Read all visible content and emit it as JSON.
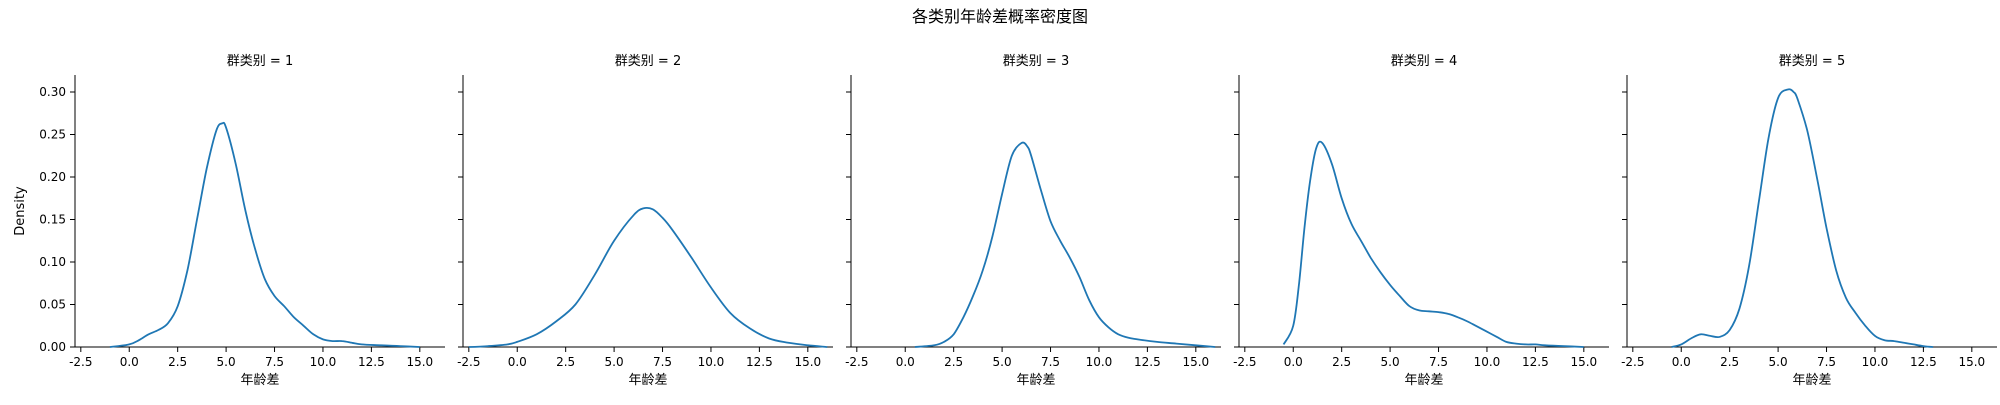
{
  "figure": {
    "title": "各类别年龄差概率密度图"
  },
  "chart_data": {
    "type": "line",
    "subtype": "kde-facet",
    "title": "各类别年龄差概率密度图",
    "xlabel": "年龄差",
    "ylabel": "Density",
    "xlim": [
      -2.8,
      16.3
    ],
    "ylim": [
      0,
      0.32
    ],
    "xticks": [
      -2.5,
      0.0,
      2.5,
      5.0,
      7.5,
      10.0,
      12.5,
      15.0
    ],
    "xtick_labels": [
      "-2.5",
      "0.0",
      "2.5",
      "5.0",
      "7.5",
      "10.0",
      "12.5",
      "15.0"
    ],
    "yticks": [
      0.0,
      0.05,
      0.1,
      0.15,
      0.2,
      0.25,
      0.3
    ],
    "ytick_labels": [
      "0.00",
      "0.05",
      "0.10",
      "0.15",
      "0.20",
      "0.25",
      "0.30"
    ],
    "shared_y": true,
    "line_color": "#1f77b4",
    "panels": [
      {
        "title": "群类别 = 1",
        "x": [
          -1.0,
          0.0,
          0.5,
          1.0,
          1.5,
          2.0,
          2.5,
          3.0,
          3.5,
          4.0,
          4.5,
          4.8,
          5.0,
          5.5,
          6.0,
          6.5,
          7.0,
          7.5,
          8.0,
          8.5,
          9.0,
          9.5,
          10.0,
          10.5,
          11.0,
          11.5,
          12.0,
          13.0,
          14.0,
          15.0
        ],
        "y": [
          0.0,
          0.003,
          0.008,
          0.015,
          0.02,
          0.028,
          0.048,
          0.09,
          0.15,
          0.21,
          0.255,
          0.263,
          0.258,
          0.215,
          0.16,
          0.115,
          0.08,
          0.06,
          0.048,
          0.035,
          0.025,
          0.015,
          0.009,
          0.007,
          0.007,
          0.005,
          0.003,
          0.002,
          0.001,
          0.0
        ]
      },
      {
        "title": "群类别 = 2",
        "x": [
          -2.5,
          -1.5,
          -0.5,
          0.0,
          1.0,
          2.0,
          3.0,
          4.0,
          5.0,
          6.0,
          6.5,
          7.0,
          7.5,
          8.0,
          9.0,
          10.0,
          11.0,
          12.0,
          13.0,
          14.0,
          15.0,
          16.0
        ],
        "y": [
          0.0,
          0.001,
          0.003,
          0.006,
          0.015,
          0.03,
          0.05,
          0.085,
          0.125,
          0.155,
          0.163,
          0.162,
          0.152,
          0.138,
          0.105,
          0.07,
          0.04,
          0.022,
          0.01,
          0.005,
          0.002,
          0.0
        ]
      },
      {
        "title": "群类别 = 3",
        "x": [
          0.5,
          1.5,
          2.0,
          2.5,
          3.0,
          3.5,
          4.0,
          4.5,
          5.0,
          5.5,
          6.0,
          6.3,
          6.5,
          7.0,
          7.5,
          8.0,
          8.5,
          9.0,
          9.5,
          10.0,
          10.5,
          11.0,
          11.5,
          12.0,
          13.0,
          14.0,
          15.0,
          16.0
        ],
        "y": [
          0.0,
          0.002,
          0.006,
          0.015,
          0.035,
          0.06,
          0.09,
          0.13,
          0.18,
          0.225,
          0.24,
          0.236,
          0.225,
          0.185,
          0.148,
          0.125,
          0.105,
          0.082,
          0.055,
          0.035,
          0.023,
          0.015,
          0.011,
          0.009,
          0.006,
          0.004,
          0.002,
          0.0
        ]
      },
      {
        "title": "群类别 = 4",
        "x": [
          -0.5,
          0.0,
          0.3,
          0.6,
          0.9,
          1.2,
          1.5,
          2.0,
          2.5,
          3.0,
          3.5,
          4.0,
          4.5,
          5.0,
          5.5,
          6.0,
          6.5,
          7.0,
          7.5,
          8.0,
          8.5,
          9.0,
          9.5,
          10.0,
          10.5,
          11.0,
          11.5,
          12.0,
          12.5,
          13.0,
          14.0,
          15.0
        ],
        "y": [
          0.003,
          0.025,
          0.075,
          0.145,
          0.2,
          0.235,
          0.24,
          0.215,
          0.175,
          0.145,
          0.125,
          0.105,
          0.088,
          0.073,
          0.06,
          0.048,
          0.043,
          0.042,
          0.041,
          0.039,
          0.035,
          0.03,
          0.024,
          0.018,
          0.012,
          0.006,
          0.004,
          0.003,
          0.003,
          0.002,
          0.001,
          0.0
        ]
      },
      {
        "title": "群类别 = 5",
        "x": [
          -0.5,
          0.0,
          0.5,
          1.0,
          1.5,
          2.0,
          2.5,
          3.0,
          3.5,
          4.0,
          4.5,
          5.0,
          5.5,
          5.8,
          6.0,
          6.5,
          7.0,
          7.5,
          8.0,
          8.5,
          9.0,
          9.5,
          10.0,
          10.5,
          11.0,
          11.5,
          12.0,
          12.5,
          13.0
        ],
        "y": [
          0.0,
          0.003,
          0.01,
          0.015,
          0.013,
          0.012,
          0.02,
          0.045,
          0.095,
          0.17,
          0.245,
          0.293,
          0.303,
          0.3,
          0.292,
          0.255,
          0.2,
          0.14,
          0.09,
          0.058,
          0.04,
          0.025,
          0.013,
          0.008,
          0.007,
          0.005,
          0.003,
          0.001,
          0.0
        ]
      }
    ]
  }
}
